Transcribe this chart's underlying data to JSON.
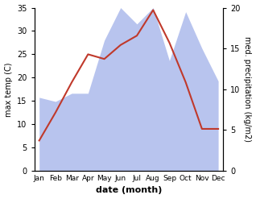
{
  "months": [
    "Jan",
    "Feb",
    "Mar",
    "Apr",
    "May",
    "Jun",
    "Jul",
    "Aug",
    "Sep",
    "Oct",
    "Nov",
    "Dec"
  ],
  "month_positions": [
    0,
    1,
    2,
    3,
    4,
    5,
    6,
    7,
    8,
    9,
    10,
    11
  ],
  "temperature": [
    6.5,
    12.5,
    19.0,
    25.0,
    24.0,
    27.0,
    29.0,
    34.5,
    27.5,
    19.0,
    9.0,
    9.0
  ],
  "precipitation_kg": [
    9.0,
    8.5,
    9.5,
    9.5,
    16.0,
    20.0,
    18.0,
    20.0,
    13.5,
    19.5,
    15.0,
    11.0
  ],
  "temp_color": "#c0392b",
  "precip_color": "#b8c4ee",
  "left_ylim": [
    0,
    35
  ],
  "right_ylim": [
    0,
    20
  ],
  "left_yticks": [
    0,
    5,
    10,
    15,
    20,
    25,
    30,
    35
  ],
  "right_yticks": [
    0,
    5,
    10,
    15,
    20
  ],
  "xlabel": "date (month)",
  "ylabel_left": "max temp (C)",
  "ylabel_right": "med. precipitation (kg/m2)",
  "bg_color": "#ffffff",
  "fig_width": 3.18,
  "fig_height": 2.47,
  "dpi": 100
}
